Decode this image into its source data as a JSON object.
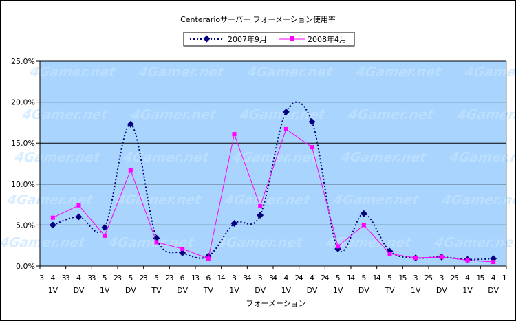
{
  "chart_data": {
    "type": "line",
    "title": "Centerarioサーバー フォーメーション使用率",
    "xlabel": "フォーメーション",
    "ylabel": "",
    "ylim": [
      0,
      0.25
    ],
    "yticks": [
      "0.0%",
      "5.0%",
      "10.0%",
      "15.0%",
      "20.0%",
      "25.0%"
    ],
    "grid": true,
    "legend": "top",
    "watermark": "4Gamer.net",
    "categories": [
      [
        "3−4−3",
        "1V"
      ],
      [
        "3−4−3",
        "DV"
      ],
      [
        "3−5−2",
        "1V"
      ],
      [
        "3−5−2",
        "DV"
      ],
      [
        "3−5−2",
        "TV"
      ],
      [
        "3−6−1",
        "DV"
      ],
      [
        "3−6−1",
        "TV"
      ],
      [
        "4−3−3",
        "1V"
      ],
      [
        "4−3−3",
        "DV"
      ],
      [
        "4−4−2",
        "1V"
      ],
      [
        "4−4−2",
        "DV"
      ],
      [
        "4−5−1",
        "1V"
      ],
      [
        "4−5−1",
        "DV"
      ],
      [
        "4−5−1",
        "TV"
      ],
      [
        "5−3−2",
        "1V"
      ],
      [
        "5−3−2",
        "DV"
      ],
      [
        "5−4−1",
        "1V"
      ],
      [
        "5−4−1",
        "DV"
      ]
    ],
    "series": [
      {
        "name": "2007年9月",
        "color": "#000080",
        "line_style": "dotted",
        "marker": "diamond",
        "values": [
          0.05,
          0.06,
          0.047,
          0.173,
          0.034,
          0.016,
          0.012,
          0.052,
          0.062,
          0.188,
          0.176,
          0.021,
          0.064,
          0.018,
          0.01,
          0.011,
          0.008,
          0.009
        ]
      },
      {
        "name": "2008年4月",
        "color": "#ff00ff",
        "line_style": "solid",
        "marker": "square",
        "values": [
          0.059,
          0.074,
          0.037,
          0.117,
          0.029,
          0.021,
          0.009,
          0.161,
          0.073,
          0.167,
          0.145,
          0.024,
          0.05,
          0.015,
          0.01,
          0.011,
          0.007,
          0.005
        ]
      }
    ]
  }
}
